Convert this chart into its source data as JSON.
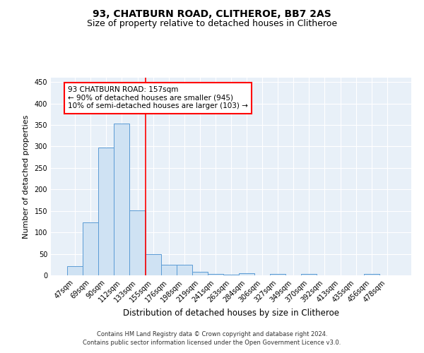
{
  "title": "93, CHATBURN ROAD, CLITHEROE, BB7 2AS",
  "subtitle": "Size of property relative to detached houses in Clitheroe",
  "xlabel": "Distribution of detached houses by size in Clitheroe",
  "ylabel": "Number of detached properties",
  "bar_labels": [
    "47sqm",
    "69sqm",
    "90sqm",
    "112sqm",
    "133sqm",
    "155sqm",
    "176sqm",
    "198sqm",
    "219sqm",
    "241sqm",
    "263sqm",
    "284sqm",
    "306sqm",
    "327sqm",
    "349sqm",
    "370sqm",
    "392sqm",
    "413sqm",
    "435sqm",
    "456sqm",
    "478sqm"
  ],
  "bar_values": [
    22,
    124,
    298,
    354,
    151,
    49,
    24,
    24,
    8,
    4,
    2,
    5,
    0,
    4,
    0,
    3,
    0,
    0,
    0,
    4,
    0
  ],
  "bar_color": "#cfe2f3",
  "bar_edgecolor": "#5b9bd5",
  "vline_x": 4.5,
  "vline_color": "red",
  "annotation_line1": "93 CHATBURN ROAD: 157sqm",
  "annotation_line2": "← 90% of detached houses are smaller (945)",
  "annotation_line3": "10% of semi-detached houses are larger (103) →",
  "annotation_box_color": "white",
  "annotation_box_edgecolor": "red",
  "annotation_fontsize": 7.5,
  "ylim": [
    0,
    460
  ],
  "yticks": [
    0,
    50,
    100,
    150,
    200,
    250,
    300,
    350,
    400,
    450
  ],
  "bg_color": "#e8f0f8",
  "footer_line1": "Contains HM Land Registry data © Crown copyright and database right 2024.",
  "footer_line2": "Contains public sector information licensed under the Open Government Licence v3.0.",
  "title_fontsize": 10,
  "subtitle_fontsize": 9,
  "xlabel_fontsize": 8.5,
  "ylabel_fontsize": 8,
  "tick_fontsize": 7,
  "footer_fontsize": 6
}
